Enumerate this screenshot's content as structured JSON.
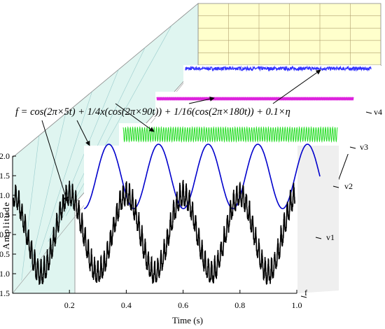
{
  "chart_data": {
    "type": "line",
    "xlabel": "Time (s)",
    "ylabel": "Amplitude",
    "xlim": [
      0.0,
      1.0
    ],
    "ylim": [
      -1.5,
      2.0
    ],
    "x_ticks": [
      "0.2",
      "0.4",
      "0.6",
      "0.8",
      "1.0"
    ],
    "y_ticks": [
      "2.0",
      "1.5",
      "1.0",
      "0.5",
      "0.0",
      "-0.5",
      "-1.0",
      "-1.5"
    ],
    "depth_labels": [
      "f",
      "v1",
      "v2",
      "v3",
      "v4"
    ],
    "annotation": "f = cos(2π×5t) + 1/4x(cos(2π×90t)) + 1/16(cos(2π×180t)) + 0.1×η",
    "series": [
      {
        "name": "f",
        "color": "#000000",
        "components": [
          {
            "amp": 1.0,
            "freq": 5
          },
          {
            "amp": 0.25,
            "freq": 90
          },
          {
            "amp": 0.0625,
            "freq": 180
          }
        ],
        "noise": 0.1
      },
      {
        "name": "v1",
        "color": "#0000cc",
        "components": [
          {
            "amp": 1.0,
            "freq": 5
          }
        ]
      },
      {
        "name": "v2",
        "color": "#22dd22",
        "components": [
          {
            "amp": 0.25,
            "freq": 90
          }
        ]
      },
      {
        "name": "v3",
        "color": "#dd22dd",
        "components": [
          {
            "amp": 0.0625,
            "freq": 180
          }
        ]
      },
      {
        "name": "v4",
        "color": "#3333ff",
        "components": [],
        "noise": 0.1
      }
    ]
  }
}
